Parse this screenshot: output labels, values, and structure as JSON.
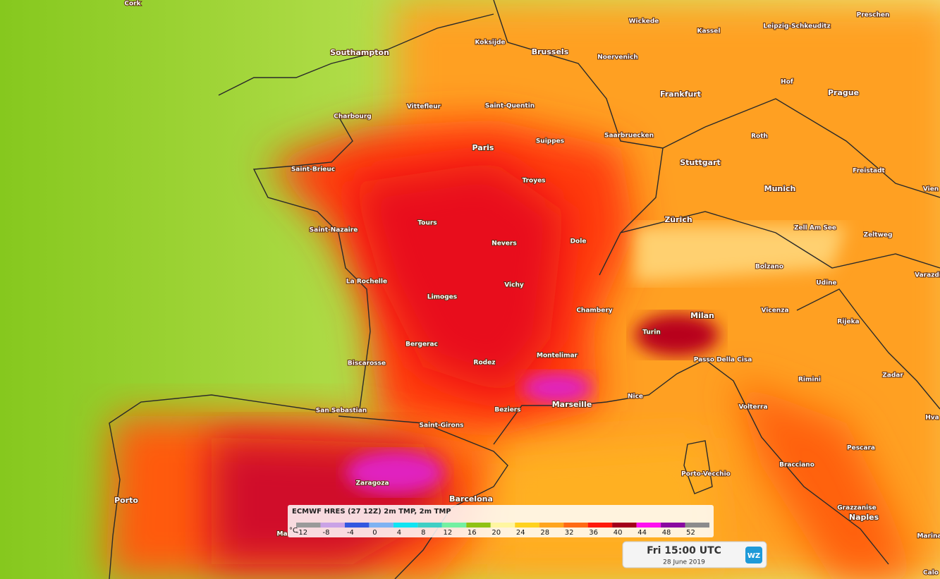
{
  "places": [
    "Cork",
    "Southampton",
    "Koksijde",
    "Brussels",
    "Wickede",
    "Kassel",
    "Leipzig-Schkeuditz",
    "Preschen",
    "Noervenich",
    "Frankfurt",
    "Hof",
    "Prague",
    "Charbourg",
    "Vittefleur",
    "Saint-Quentin",
    "Saarbruecken",
    "Roth",
    "Paris",
    "Suippes",
    "Stuttgart",
    "Saint-Brieuc",
    "Troyes",
    "Freistadt",
    "Munich",
    "Vien",
    "Zürich",
    "Zell Am See",
    "Zeltweg",
    "Saint-Nazaire",
    "Tours",
    "Nevers",
    "Dole",
    "Bolzano",
    "Udine",
    "Varazdi",
    "La Rochelle",
    "Vichy",
    "Limoges",
    "Chambery",
    "Milan",
    "Vicenza",
    "Rijeka",
    "Turin",
    "Bergerac",
    "Montelimar",
    "Passo Della Cisa",
    "Biscarosse",
    "Rodez",
    "Zadar",
    "Rimini",
    "Nice",
    "Marseille",
    "Beziers",
    "San Sebastian",
    "Volterra",
    "Saint-Girons",
    "Hva",
    "Pescara",
    "Porto-Vecchio",
    "Bracciano",
    "Zaragoza",
    "Barcelona",
    "Porto",
    "Grazzanise",
    "Naples",
    "Ma",
    "Marina",
    "Calo"
  ],
  "legend": {
    "title": "ECMWF HRES (27 12Z) 2m TMP, 2m TMP",
    "unit": "°C",
    "ticks": [
      -12,
      -8,
      -4,
      0,
      4,
      8,
      12,
      16,
      20,
      24,
      28,
      32,
      36,
      40,
      44,
      48,
      52
    ],
    "colors": [
      "#9a9a9a",
      "#c9a2e6",
      "#3358e0",
      "#7fb2f2",
      "#10e4f2",
      "#3fcfc4",
      "#74f0a2",
      "#8fc214",
      "#fff6a0",
      "#ffd21e",
      "#ffa51e",
      "#ff6a14",
      "#ff1a0a",
      "#a3001a",
      "#ff10f0",
      "#8a0aa0",
      "#8c8c8c"
    ]
  },
  "time": {
    "label": "Fri 15:00 UTC",
    "date": "28 June 2019",
    "logo": "WZ"
  }
}
